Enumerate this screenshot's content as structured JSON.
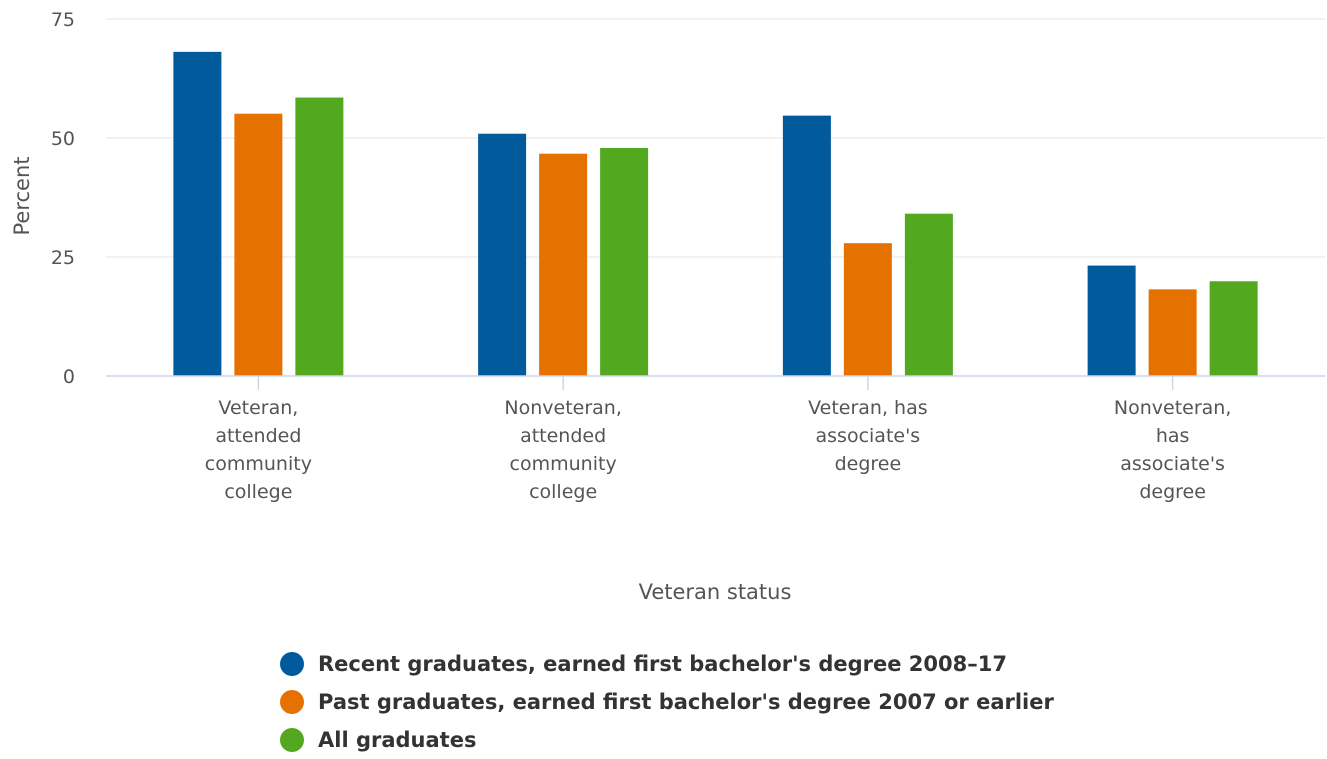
{
  "chart_data": {
    "type": "bar",
    "xlabel": "Veteran status",
    "ylabel": "Percent",
    "ylim": [
      0,
      75
    ],
    "yticks": [
      0,
      25,
      50,
      75
    ],
    "grid": true,
    "legend_position": "bottom",
    "categories": [
      [
        "Veteran,",
        "attended",
        "community",
        "college"
      ],
      [
        "Nonveteran,",
        "attended",
        "community",
        "college"
      ],
      [
        "Veteran, has",
        "associate's",
        "degree"
      ],
      [
        "Nonveteran,",
        "has",
        "associate's",
        "degree"
      ]
    ],
    "series": [
      {
        "name": "Recent graduates, earned first bachelor's degree 2008–17",
        "color": "#005a9c",
        "values": [
          68.1,
          50.9,
          54.7,
          23.2
        ]
      },
      {
        "name": "Past graduates, earned first bachelor's degree 2007 or earlier",
        "color": "#e57200",
        "values": [
          55.1,
          46.7,
          27.9,
          18.2
        ]
      },
      {
        "name": "All graduates",
        "color": "#52a81e",
        "values": [
          58.5,
          47.9,
          34.1,
          19.9
        ]
      }
    ]
  }
}
